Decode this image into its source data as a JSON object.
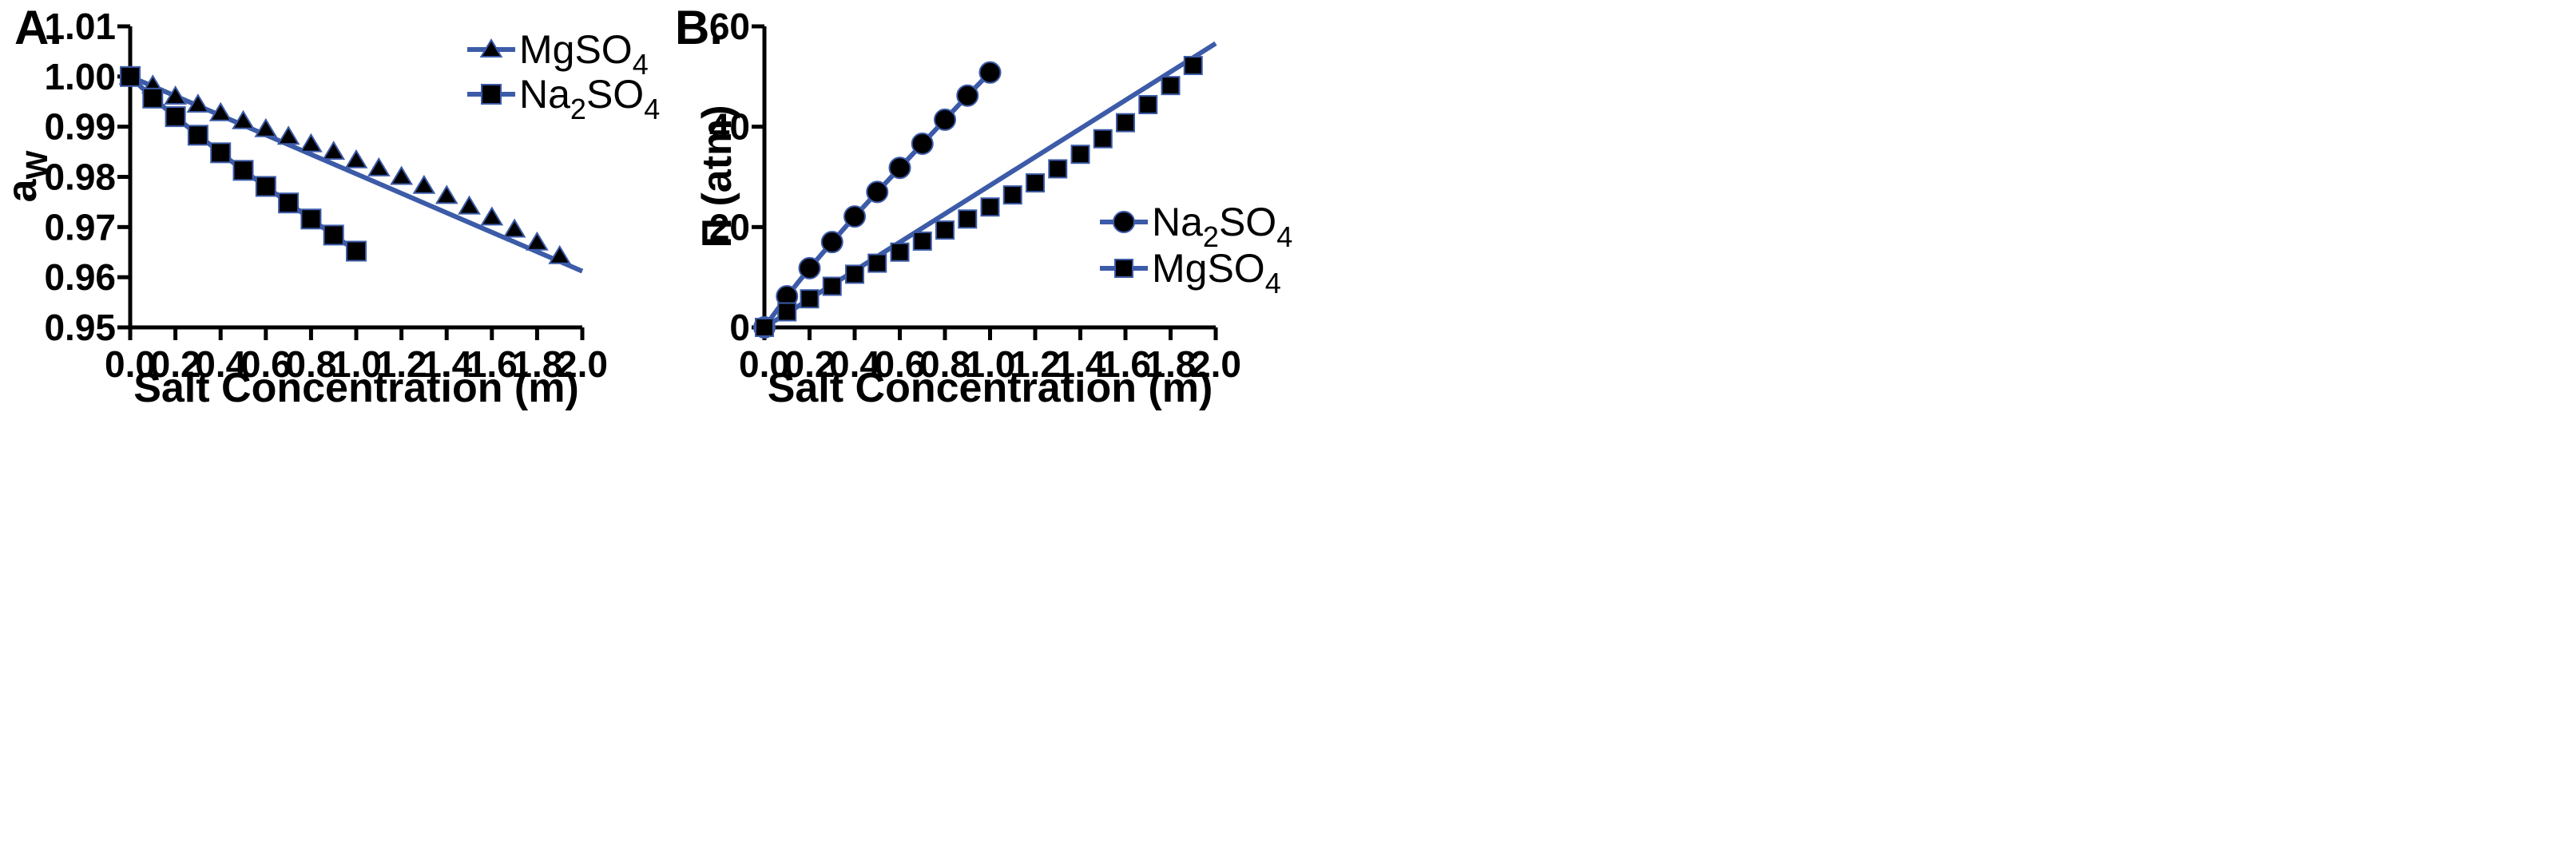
{
  "chart_data": [
    {
      "panel_label": "A.",
      "type": "line",
      "xlabel": "Salt Concentration (m)",
      "ylabel": "a",
      "ylabel_sub": "W",
      "xlim": [
        0.0,
        2.0
      ],
      "ylim": [
        0.95,
        1.01
      ],
      "xticks": [
        "0.0",
        "0.2",
        "0.4",
        "0.6",
        "0.8",
        "1.0",
        "1.2",
        "1.4",
        "1.6",
        "1.8",
        "2.0"
      ],
      "yticks": [
        "0.95",
        "0.96",
        "0.97",
        "0.98",
        "0.99",
        "1.00",
        "1.01"
      ],
      "legend": "top-right",
      "series": [
        {
          "name": "MgSO",
          "name_sub": "4",
          "marker": "triangle",
          "color": "#3c5ba8",
          "x": [
            0.0,
            0.1,
            0.2,
            0.3,
            0.4,
            0.5,
            0.6,
            0.7,
            0.8,
            0.9,
            1.0,
            1.1,
            1.2,
            1.3,
            1.4,
            1.5,
            1.6,
            1.7,
            1.8,
            1.9
          ],
          "y": [
            1.0,
            0.9982,
            0.996,
            0.9944,
            0.9927,
            0.9911,
            0.9895,
            0.988,
            0.9865,
            0.985,
            0.9833,
            0.9817,
            0.98,
            0.9782,
            0.9762,
            0.9741,
            0.9719,
            0.9695,
            0.9669,
            0.9642
          ],
          "fit_line": {
            "x": [
              0.0,
              2.0
            ],
            "y": [
              1.0,
              0.9612
            ]
          }
        },
        {
          "name": "Na",
          "name_sub": "2",
          "name_mid": "SO",
          "name_sub2": "4",
          "marker": "square",
          "color": "#3c5ba8",
          "x": [
            0.0,
            0.1,
            0.2,
            0.3,
            0.4,
            0.5,
            0.6,
            0.7,
            0.8,
            0.9,
            1.0
          ],
          "y": [
            1.0,
            0.9957,
            0.992,
            0.9883,
            0.9848,
            0.9813,
            0.9781,
            0.9748,
            0.9716,
            0.9684,
            0.9652
          ]
        }
      ]
    },
    {
      "panel_label": "B.",
      "type": "line",
      "xlabel": "Salt Concentration (m)",
      "ylabel": "Π (atm)",
      "xlim": [
        0.0,
        2.0
      ],
      "ylim": [
        0,
        60
      ],
      "xticks": [
        "0.0",
        "0.2",
        "0.4",
        "0.6",
        "0.8",
        "1.0",
        "1.2",
        "1.4",
        "1.6",
        "1.8",
        "2.0"
      ],
      "yticks": [
        "0",
        "20",
        "40",
        "60"
      ],
      "legend": "bottom-right",
      "series": [
        {
          "name": "Na",
          "name_sub": "2",
          "name_mid": "SO",
          "name_sub2": "4",
          "marker": "circle",
          "color": "#3c5ba8",
          "x": [
            0.0,
            0.1,
            0.2,
            0.3,
            0.4,
            0.5,
            0.6,
            0.7,
            0.8,
            0.9,
            1.0
          ],
          "y": [
            0.0,
            6.2,
            11.8,
            17.0,
            22.1,
            27.0,
            31.8,
            36.6,
            41.4,
            46.2,
            50.8
          ]
        },
        {
          "name": "MgSO",
          "name_sub": "4",
          "marker": "square",
          "color": "#3c5ba8",
          "x": [
            0.0,
            0.1,
            0.2,
            0.3,
            0.4,
            0.5,
            0.6,
            0.7,
            0.8,
            0.9,
            1.0,
            1.1,
            1.2,
            1.3,
            1.4,
            1.5,
            1.6,
            1.7,
            1.8,
            1.9
          ],
          "y": [
            0.0,
            3.1,
            5.7,
            8.2,
            10.6,
            12.8,
            15.0,
            17.2,
            19.4,
            21.6,
            24.0,
            26.4,
            28.8,
            31.6,
            34.5,
            37.6,
            40.8,
            44.4,
            48.2,
            52.2
          ],
          "fit_line": {
            "x": [
              0.0,
              2.0
            ],
            "y": [
              0.0,
              56.6
            ]
          }
        }
      ]
    }
  ]
}
